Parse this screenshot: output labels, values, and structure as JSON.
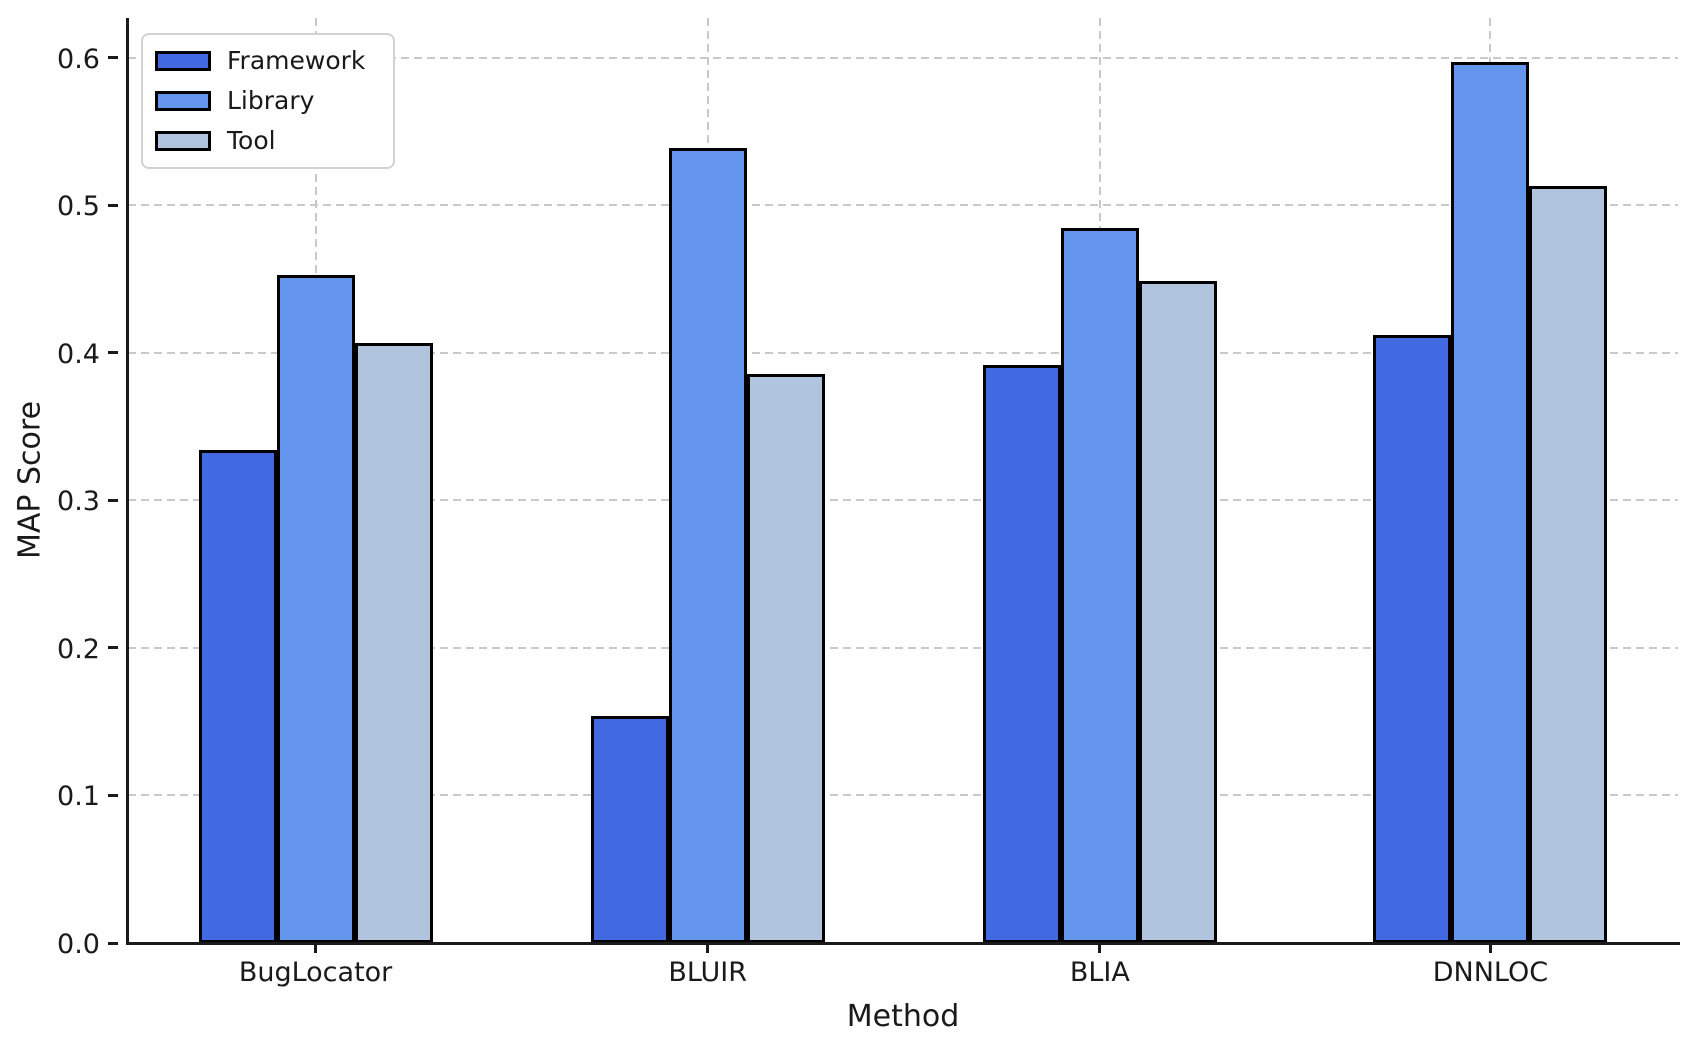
{
  "chart_data": {
    "type": "bar",
    "title": "",
    "xlabel": "Method",
    "ylabel": "MAP Score",
    "categories": [
      "BugLocator",
      "BLUIR",
      "BLIA",
      "DNNLOC"
    ],
    "series": [
      {
        "name": "Framework",
        "color": "#4169E1",
        "values": [
          0.334,
          0.154,
          0.392,
          0.412
        ]
      },
      {
        "name": "Library",
        "color": "#6495ED",
        "values": [
          0.453,
          0.539,
          0.485,
          0.597
        ]
      },
      {
        "name": "Tool",
        "color": "#B0C4DE",
        "values": [
          0.407,
          0.386,
          0.449,
          0.513
        ]
      }
    ],
    "yticks": [
      0.0,
      0.1,
      0.2,
      0.3,
      0.4,
      0.5,
      0.6
    ],
    "ytick_labels": [
      "0.0",
      "0.1",
      "0.2",
      "0.3",
      "0.4",
      "0.5",
      "0.6"
    ],
    "ylim": [
      0,
      0.627
    ],
    "bar_edge_color": "#000000",
    "axis_color": "#1a1a1a",
    "grid": {
      "visible": true,
      "color": "#c9c9c9",
      "style": "dashed",
      "axes": "both"
    },
    "legend": {
      "position": "upper-left",
      "entries": [
        "Framework",
        "Library",
        "Tool"
      ]
    }
  }
}
